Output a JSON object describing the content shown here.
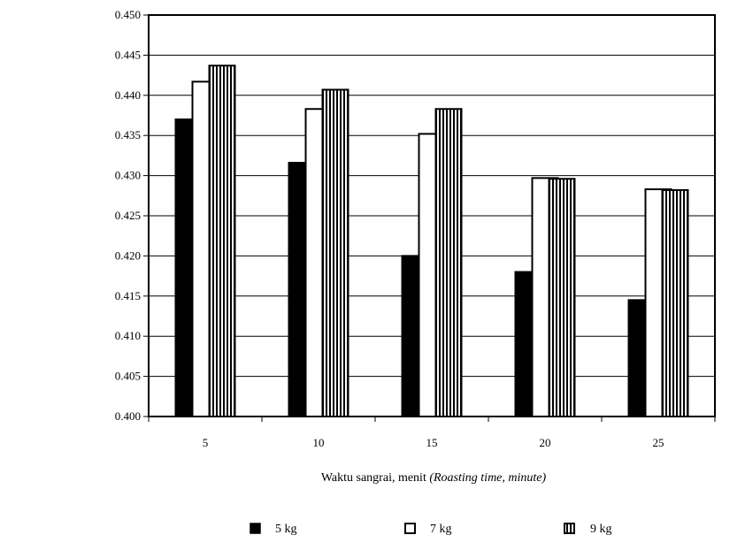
{
  "chart_data": {
    "type": "bar",
    "title": "",
    "xlabel_main": "Waktu sangrai, menit ",
    "xlabel_italic": "(Roasting time, minute)",
    "ylabel": "",
    "categories": [
      "5",
      "10",
      "15",
      "20",
      "25"
    ],
    "ylim": [
      0.4,
      0.45
    ],
    "yticks": [
      "0.400",
      "0.405",
      "0.410",
      "0.415",
      "0.420",
      "0.425",
      "0.430",
      "0.435",
      "0.440",
      "0.445",
      "0.450"
    ],
    "grid": true,
    "legend_position": "bottom",
    "series": [
      {
        "name": "5 kg",
        "fill": "solid-black",
        "values": [
          0.437,
          0.4316,
          0.42,
          0.418,
          0.4145
        ]
      },
      {
        "name": "7 kg",
        "fill": "white",
        "values": [
          0.4417,
          0.4383,
          0.4352,
          0.4297,
          0.4283
        ]
      },
      {
        "name": "9 kg",
        "fill": "vertical-stripes",
        "values": [
          0.4437,
          0.4407,
          0.4383,
          0.4296,
          0.4282
        ]
      }
    ]
  },
  "colors": {
    "ink": "#000000",
    "background": "#ffffff"
  }
}
